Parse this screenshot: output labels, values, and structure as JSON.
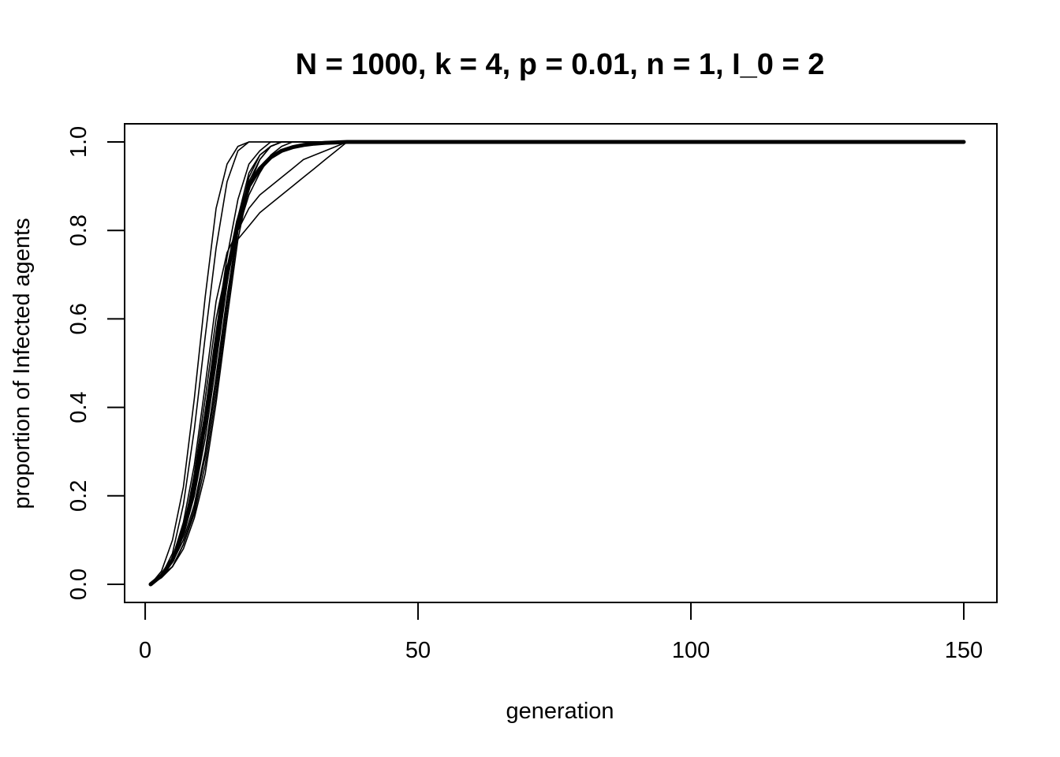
{
  "chart_data": {
    "type": "line",
    "title": "N = 1000, k = 4, p = 0.01, n = 1, I_0 = 2",
    "xlabel": "generation",
    "ylabel": "proportion of Infected agents",
    "xlim": [
      1,
      150
    ],
    "ylim": [
      0,
      1
    ],
    "xticks": [
      {
        "value": 0,
        "label": "0"
      },
      {
        "value": 50,
        "label": "50"
      },
      {
        "value": 100,
        "label": "100"
      },
      {
        "value": 150,
        "label": "150"
      }
    ],
    "yticks": [
      {
        "value": 0.0,
        "label": "0.0"
      },
      {
        "value": 0.2,
        "label": "0.2"
      },
      {
        "value": 0.4,
        "label": "0.4"
      },
      {
        "value": 0.6,
        "label": "0.6"
      },
      {
        "value": 0.8,
        "label": "0.8"
      },
      {
        "value": 1.0,
        "label": "1.0"
      }
    ],
    "grid": false,
    "legend": "none",
    "line_color": "#000000",
    "series": [
      {
        "role": "run",
        "x": [
          1,
          3,
          5,
          7,
          9,
          11,
          13,
          15,
          17,
          19,
          21,
          23,
          150
        ],
        "y": [
          0,
          0.03,
          0.1,
          0.22,
          0.42,
          0.65,
          0.85,
          0.95,
          0.99,
          1,
          1,
          1,
          1
        ]
      },
      {
        "role": "run",
        "x": [
          1,
          3,
          5,
          7,
          9,
          11,
          13,
          15,
          17,
          19,
          21,
          23,
          150
        ],
        "y": [
          0,
          0.02,
          0.07,
          0.18,
          0.35,
          0.56,
          0.76,
          0.91,
          0.98,
          1,
          1,
          1,
          1
        ]
      },
      {
        "role": "run",
        "x": [
          1,
          3,
          5,
          7,
          9,
          11,
          13,
          15,
          17,
          19,
          21,
          23,
          25,
          27,
          29,
          31,
          33,
          35,
          37,
          150
        ],
        "y": [
          0,
          0.02,
          0.06,
          0.14,
          0.27,
          0.45,
          0.64,
          0.75,
          0.8,
          0.85,
          0.88,
          0.9,
          0.92,
          0.94,
          0.96,
          0.97,
          0.98,
          0.99,
          1,
          1
        ]
      },
      {
        "role": "run",
        "x": [
          1,
          3,
          5,
          7,
          9,
          11,
          13,
          15,
          17,
          19,
          21,
          23,
          25,
          27,
          29,
          31,
          33,
          35,
          37,
          150
        ],
        "y": [
          0,
          0.02,
          0.05,
          0.12,
          0.25,
          0.42,
          0.6,
          0.72,
          0.78,
          0.81,
          0.84,
          0.86,
          0.88,
          0.9,
          0.92,
          0.94,
          0.96,
          0.98,
          1,
          1
        ]
      },
      {
        "role": "run",
        "x": [
          1,
          3,
          5,
          7,
          9,
          11,
          13,
          15,
          17,
          19,
          21,
          23,
          25,
          27,
          29,
          31,
          150
        ],
        "y": [
          0,
          0.02,
          0.05,
          0.1,
          0.18,
          0.3,
          0.47,
          0.65,
          0.81,
          0.92,
          0.97,
          0.99,
          1,
          1,
          1,
          1,
          1
        ]
      },
      {
        "role": "run",
        "x": [
          1,
          3,
          5,
          7,
          9,
          11,
          13,
          15,
          17,
          19,
          21,
          23,
          25,
          27,
          150
        ],
        "y": [
          0,
          0.02,
          0.04,
          0.09,
          0.16,
          0.27,
          0.43,
          0.62,
          0.8,
          0.91,
          0.96,
          0.99,
          1,
          1,
          1
        ]
      },
      {
        "role": "run",
        "x": [
          1,
          3,
          5,
          7,
          9,
          11,
          13,
          15,
          17,
          19,
          21,
          23,
          25,
          27,
          29,
          150
        ],
        "y": [
          0,
          0.015,
          0.04,
          0.09,
          0.17,
          0.29,
          0.45,
          0.64,
          0.8,
          0.88,
          0.93,
          0.97,
          0.99,
          1,
          1,
          1
        ]
      },
      {
        "role": "run",
        "x": [
          1,
          3,
          5,
          7,
          9,
          11,
          13,
          15,
          17,
          19,
          21,
          23,
          25,
          27,
          150
        ],
        "y": [
          0,
          0.015,
          0.04,
          0.08,
          0.15,
          0.25,
          0.41,
          0.6,
          0.78,
          0.9,
          0.96,
          0.99,
          1,
          1,
          1
        ]
      },
      {
        "role": "run",
        "x": [
          1,
          3,
          5,
          7,
          9,
          11,
          13,
          15,
          17,
          19,
          21,
          23,
          25,
          150
        ],
        "y": [
          0,
          0.02,
          0.06,
          0.13,
          0.24,
          0.39,
          0.57,
          0.74,
          0.87,
          0.95,
          0.98,
          1,
          1,
          1
        ]
      },
      {
        "role": "run",
        "x": [
          1,
          3,
          5,
          7,
          9,
          11,
          13,
          15,
          17,
          19,
          21,
          23,
          25,
          27,
          150
        ],
        "y": [
          0,
          0.02,
          0.05,
          0.11,
          0.2,
          0.33,
          0.5,
          0.68,
          0.83,
          0.93,
          0.97,
          0.99,
          1,
          1,
          1
        ]
      },
      {
        "role": "mean",
        "x": [
          1,
          3,
          5,
          7,
          9,
          11,
          13,
          15,
          17,
          19,
          21,
          23,
          25,
          27,
          29,
          31,
          33,
          35,
          37,
          40,
          150
        ],
        "y": [
          0,
          0.02,
          0.055,
          0.12,
          0.22,
          0.37,
          0.54,
          0.7,
          0.82,
          0.9,
          0.94,
          0.965,
          0.98,
          0.988,
          0.993,
          0.996,
          0.998,
          0.999,
          1,
          1,
          1
        ]
      }
    ]
  }
}
